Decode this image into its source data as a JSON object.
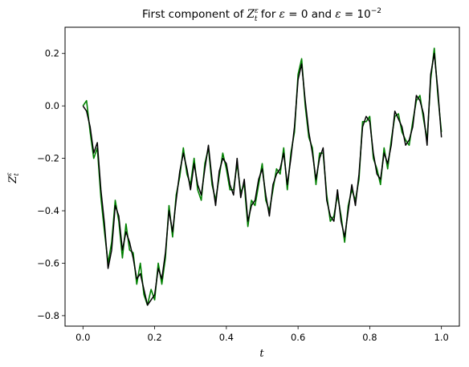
{
  "chart_data": {
    "type": "line",
    "title": "First component of Z_t^ε for ε = 0 and ε = 10^−2",
    "title_parts": {
      "prefix": "First component of ",
      "var": "Z",
      "var_sub": "t",
      "var_sup": "ε",
      "mid1": " for ",
      "eps1": "ε",
      "eq1": " = 0 and ",
      "eps2": "ε",
      "eq2": " = 10",
      "exp": "−2"
    },
    "xlabel": "t",
    "ylabel_parts": {
      "var": "Z",
      "sub": "t",
      "sup": "ε"
    },
    "xlim": [
      -0.05,
      1.05
    ],
    "ylim": [
      -0.84,
      0.3
    ],
    "xticks": [
      0.0,
      0.2,
      0.4,
      0.6,
      0.8,
      1.0
    ],
    "xtick_labels": [
      "0.0",
      "0.2",
      "0.4",
      "0.6",
      "0.8",
      "1.0"
    ],
    "yticks": [
      -0.8,
      -0.6,
      -0.4,
      -0.2,
      0.0,
      0.2
    ],
    "ytick_labels": [
      "−0.8",
      "−0.6",
      "−0.4",
      "−0.2",
      "0.0",
      "0.2"
    ],
    "grid": false,
    "colors": {
      "smooth": "#000000",
      "noisy": "#008000"
    },
    "series": [
      {
        "color": "#000000",
        "x": [
          0.0,
          0.01,
          0.02,
          0.03,
          0.04,
          0.05,
          0.06,
          0.07,
          0.08,
          0.09,
          0.1,
          0.11,
          0.12,
          0.13,
          0.14,
          0.15,
          0.16,
          0.17,
          0.18,
          0.19,
          0.2,
          0.21,
          0.22,
          0.23,
          0.24,
          0.25,
          0.26,
          0.27,
          0.28,
          0.29,
          0.3,
          0.31,
          0.32,
          0.33,
          0.34,
          0.35,
          0.36,
          0.37,
          0.38,
          0.39,
          0.4,
          0.41,
          0.42,
          0.43,
          0.44,
          0.45,
          0.46,
          0.47,
          0.48,
          0.49,
          0.5,
          0.51,
          0.52,
          0.53,
          0.54,
          0.55,
          0.56,
          0.57,
          0.58,
          0.59,
          0.6,
          0.61,
          0.62,
          0.63,
          0.64,
          0.65,
          0.66,
          0.67,
          0.68,
          0.69,
          0.7,
          0.71,
          0.72,
          0.73,
          0.74,
          0.75,
          0.76,
          0.77,
          0.78,
          0.79,
          0.8,
          0.81,
          0.82,
          0.83,
          0.84,
          0.85,
          0.86,
          0.87,
          0.88,
          0.89,
          0.9,
          0.91,
          0.92,
          0.93,
          0.94,
          0.95,
          0.96,
          0.97,
          0.98,
          0.99,
          1.0
        ],
        "y": [
          0.0,
          -0.02,
          -0.08,
          -0.18,
          -0.14,
          -0.32,
          -0.45,
          -0.62,
          -0.55,
          -0.38,
          -0.42,
          -0.55,
          -0.48,
          -0.52,
          -0.58,
          -0.66,
          -0.64,
          -0.7,
          -0.76,
          -0.74,
          -0.72,
          -0.62,
          -0.66,
          -0.56,
          -0.4,
          -0.48,
          -0.36,
          -0.25,
          -0.18,
          -0.24,
          -0.32,
          -0.22,
          -0.3,
          -0.34,
          -0.24,
          -0.15,
          -0.28,
          -0.38,
          -0.25,
          -0.2,
          -0.22,
          -0.3,
          -0.34,
          -0.2,
          -0.35,
          -0.28,
          -0.44,
          -0.38,
          -0.36,
          -0.28,
          -0.24,
          -0.34,
          -0.42,
          -0.3,
          -0.26,
          -0.24,
          -0.18,
          -0.3,
          -0.2,
          -0.08,
          0.1,
          0.16,
          0.02,
          -0.1,
          -0.18,
          -0.28,
          -0.2,
          -0.16,
          -0.36,
          -0.42,
          -0.44,
          -0.32,
          -0.44,
          -0.5,
          -0.4,
          -0.3,
          -0.38,
          -0.26,
          -0.08,
          -0.04,
          -0.06,
          -0.18,
          -0.26,
          -0.28,
          -0.18,
          -0.22,
          -0.15,
          -0.02,
          -0.05,
          -0.08,
          -0.15,
          -0.13,
          -0.08,
          0.04,
          0.02,
          -0.03,
          -0.15,
          0.12,
          0.2,
          0.06,
          -0.12
        ]
      },
      {
        "color": "#008000",
        "x": [
          0.0,
          0.01,
          0.02,
          0.03,
          0.04,
          0.05,
          0.06,
          0.07,
          0.08,
          0.09,
          0.1,
          0.11,
          0.12,
          0.13,
          0.14,
          0.15,
          0.16,
          0.17,
          0.18,
          0.19,
          0.2,
          0.21,
          0.22,
          0.23,
          0.24,
          0.25,
          0.26,
          0.27,
          0.28,
          0.29,
          0.3,
          0.31,
          0.32,
          0.33,
          0.34,
          0.35,
          0.36,
          0.37,
          0.38,
          0.39,
          0.4,
          0.41,
          0.42,
          0.43,
          0.44,
          0.45,
          0.46,
          0.47,
          0.48,
          0.49,
          0.5,
          0.51,
          0.52,
          0.53,
          0.54,
          0.55,
          0.56,
          0.57,
          0.58,
          0.59,
          0.6,
          0.61,
          0.62,
          0.63,
          0.64,
          0.65,
          0.66,
          0.67,
          0.68,
          0.69,
          0.7,
          0.71,
          0.72,
          0.73,
          0.74,
          0.75,
          0.76,
          0.77,
          0.78,
          0.79,
          0.8,
          0.81,
          0.82,
          0.83,
          0.84,
          0.85,
          0.86,
          0.87,
          0.88,
          0.89,
          0.9,
          0.91,
          0.92,
          0.93,
          0.94,
          0.95,
          0.96,
          0.97,
          0.98,
          0.99,
          1.0
        ],
        "y": [
          0.0,
          0.02,
          -0.1,
          -0.2,
          -0.16,
          -0.35,
          -0.48,
          -0.6,
          -0.52,
          -0.36,
          -0.44,
          -0.58,
          -0.45,
          -0.55,
          -0.56,
          -0.68,
          -0.6,
          -0.72,
          -0.76,
          -0.7,
          -0.74,
          -0.6,
          -0.68,
          -0.58,
          -0.38,
          -0.5,
          -0.34,
          -0.27,
          -0.16,
          -0.26,
          -0.3,
          -0.2,
          -0.32,
          -0.36,
          -0.22,
          -0.16,
          -0.3,
          -0.36,
          -0.27,
          -0.18,
          -0.24,
          -0.32,
          -0.32,
          -0.22,
          -0.33,
          -0.3,
          -0.46,
          -0.36,
          -0.38,
          -0.3,
          -0.22,
          -0.36,
          -0.4,
          -0.32,
          -0.24,
          -0.26,
          -0.16,
          -0.32,
          -0.18,
          -0.1,
          0.12,
          0.18,
          0.0,
          -0.12,
          -0.16,
          -0.3,
          -0.18,
          -0.18,
          -0.34,
          -0.44,
          -0.42,
          -0.34,
          -0.42,
          -0.52,
          -0.38,
          -0.32,
          -0.36,
          -0.28,
          -0.06,
          -0.06,
          -0.04,
          -0.2,
          -0.24,
          -0.3,
          -0.16,
          -0.24,
          -0.13,
          -0.04,
          -0.03,
          -0.1,
          -0.13,
          -0.15,
          -0.06,
          0.02,
          0.04,
          -0.05,
          -0.13,
          0.1,
          0.22,
          0.04,
          -0.1
        ]
      }
    ]
  }
}
